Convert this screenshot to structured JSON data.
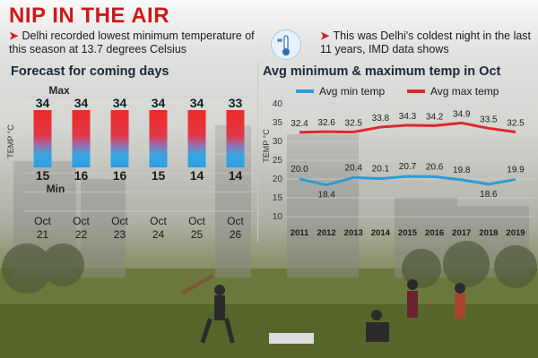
{
  "header": {
    "title": "NIP IN THE AIR",
    "bullet_left": "Delhi recorded lowest minimum temperature of this season at 13.7 degrees Celsius",
    "bullet_right": "This was Delhi's coldest night in the last 11 years, IMD data shows"
  },
  "colors": {
    "accent": "#cc1a1a",
    "min_line": "#2e9bd9",
    "max_line": "#e0282b"
  },
  "chart_data": [
    {
      "type": "bar",
      "title": "Forecast for coming days",
      "ylabel": "TEMP °C",
      "categories": [
        [
          "Oct",
          "21"
        ],
        [
          "Oct",
          "22"
        ],
        [
          "Oct",
          "23"
        ],
        [
          "Oct",
          "24"
        ],
        [
          "Oct",
          "25"
        ],
        [
          "Oct",
          "26"
        ]
      ],
      "series": [
        {
          "name": "Min",
          "values": [
            15,
            16,
            16,
            15,
            14,
            14
          ]
        },
        {
          "name": "Max",
          "values": [
            34,
            34,
            34,
            34,
            34,
            33
          ]
        }
      ],
      "legend": {
        "max_label": "Max",
        "min_label": "Min"
      },
      "grid": true
    },
    {
      "type": "line",
      "title": "Avg minimum & maximum temp in Oct",
      "ylabel": "TEMP °C",
      "x": [
        2011,
        2012,
        2013,
        2014,
        2015,
        2016,
        2017,
        2018,
        2019
      ],
      "series": [
        {
          "name": "Avg min temp",
          "values": [
            20.0,
            18.4,
            20.4,
            20.1,
            20.7,
            20.6,
            19.8,
            18.6,
            19.9
          ]
        },
        {
          "name": "Avg max temp",
          "values": [
            32.4,
            32.6,
            32.5,
            33.8,
            34.3,
            34.2,
            34.9,
            33.5,
            32.5
          ]
        }
      ],
      "ylim": [
        10,
        40
      ],
      "yticks": [
        10,
        15,
        20,
        25,
        30,
        35,
        40
      ],
      "value_labels": [
        "20.0",
        "18.4",
        "20.4",
        "20.1",
        "20.7",
        "20.6",
        "19.8",
        "18.6",
        "19.9"
      ],
      "max_value_labels": [
        "32.4",
        "32.6",
        "32.5",
        "33.8",
        "34.3",
        "34.2",
        "34.9",
        "33.5",
        "32.5"
      ],
      "legend_position": "top",
      "grid": true
    }
  ]
}
